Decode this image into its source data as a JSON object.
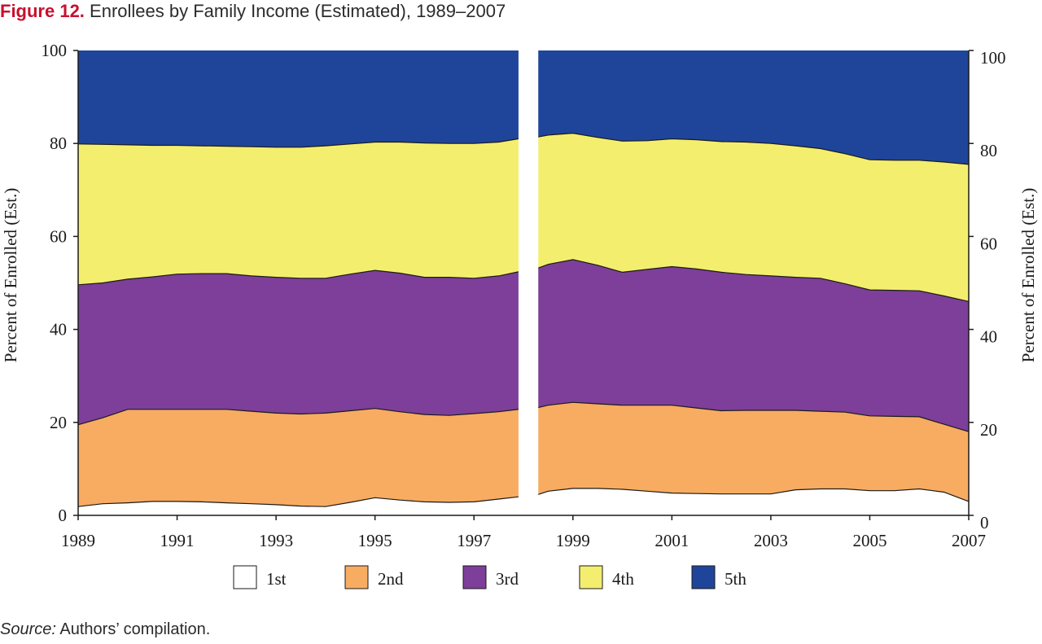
{
  "figure": {
    "label": "Figure 12.",
    "title": "Enrollees by Family Income (Estimated), 1989–2007"
  },
  "source": {
    "label": "Source:",
    "text": " Authors’ compilation."
  },
  "chart_data": {
    "type": "area",
    "stacked": true,
    "x_break_between": [
      1997.9,
      1998.3
    ],
    "xlim": [
      1989,
      2007
    ],
    "ylim": [
      0,
      100
    ],
    "xticks": [
      1989,
      1991,
      1993,
      1995,
      1997,
      1999,
      2001,
      2003,
      2005,
      2007
    ],
    "yticks": [
      0,
      20,
      40,
      60,
      80,
      100
    ],
    "ylabel_left": "Percent of Enrolled (Est.)",
    "ylabel_right": "Percent of Enrolled (Est.)",
    "legend_position": "bottom",
    "x": [
      1989,
      1989.5,
      1990,
      1990.5,
      1991,
      1991.5,
      1992,
      1992.5,
      1993,
      1993.5,
      1994,
      1994.5,
      1995,
      1995.5,
      1996,
      1996.5,
      1997,
      1997.5,
      1997.9,
      1998.3,
      1998.5,
      1999,
      1999.5,
      2000,
      2000.5,
      2001,
      2001.5,
      2002,
      2002.5,
      2003,
      2003.5,
      2004,
      2004.5,
      2005,
      2005.5,
      2006,
      2006.5,
      2007
    ],
    "cumulative_upper": {
      "1st": [
        1.9,
        2.5,
        2.7,
        3.0,
        3.0,
        2.9,
        2.7,
        2.5,
        2.3,
        2.0,
        1.9,
        2.8,
        3.8,
        3.3,
        2.9,
        2.8,
        2.9,
        3.5,
        4.0,
        4.5,
        5.2,
        5.8,
        5.8,
        5.6,
        5.2,
        4.8,
        4.7,
        4.6,
        4.6,
        4.6,
        5.5,
        5.7,
        5.7,
        5.3,
        5.3,
        5.7,
        5.0,
        3.0
      ],
      "2nd": [
        19.5,
        21.0,
        22.8,
        22.8,
        22.8,
        22.8,
        22.8,
        22.4,
        22.0,
        21.8,
        22.0,
        22.5,
        23.0,
        22.3,
        21.7,
        21.5,
        21.9,
        22.3,
        22.8,
        23.2,
        23.7,
        24.3,
        24.0,
        23.7,
        23.7,
        23.7,
        23.1,
        22.5,
        22.6,
        22.6,
        22.6,
        22.4,
        22.2,
        21.4,
        21.3,
        21.2,
        19.6,
        18.0
      ],
      "3rd": [
        49.6,
        50.0,
        50.8,
        51.3,
        51.9,
        52.0,
        52.0,
        51.5,
        51.2,
        51.0,
        51.0,
        51.9,
        52.7,
        52.1,
        51.2,
        51.2,
        51.0,
        51.5,
        52.4,
        53.2,
        54.0,
        55.0,
        53.8,
        52.3,
        52.9,
        53.5,
        53.0,
        52.3,
        51.8,
        51.5,
        51.2,
        51.0,
        49.8,
        48.5,
        48.4,
        48.3,
        47.2,
        46.0
      ],
      "4th": [
        79.9,
        79.8,
        79.7,
        79.6,
        79.6,
        79.5,
        79.4,
        79.3,
        79.2,
        79.2,
        79.5,
        79.9,
        80.3,
        80.3,
        80.1,
        80.0,
        80.0,
        80.3,
        81.0,
        81.4,
        81.8,
        82.2,
        81.3,
        80.5,
        80.6,
        81.0,
        80.8,
        80.4,
        80.3,
        80.0,
        79.5,
        78.9,
        77.8,
        76.5,
        76.4,
        76.4,
        76.0,
        75.5
      ],
      "5th": [
        100,
        100,
        100,
        100,
        100,
        100,
        100,
        100,
        100,
        100,
        100,
        100,
        100,
        100,
        100,
        100,
        100,
        100,
        100,
        100,
        100,
        100,
        100,
        100,
        100,
        100,
        100,
        100,
        100,
        100,
        100,
        100,
        100,
        100,
        100,
        100,
        100,
        100
      ]
    },
    "series": [
      {
        "name": "1st",
        "color": "#ffffff"
      },
      {
        "name": "2nd",
        "color": "#f7ac61"
      },
      {
        "name": "3rd",
        "color": "#7d3f99"
      },
      {
        "name": "4th",
        "color": "#f4ee6e"
      },
      {
        "name": "5th",
        "color": "#1f459b"
      }
    ]
  }
}
